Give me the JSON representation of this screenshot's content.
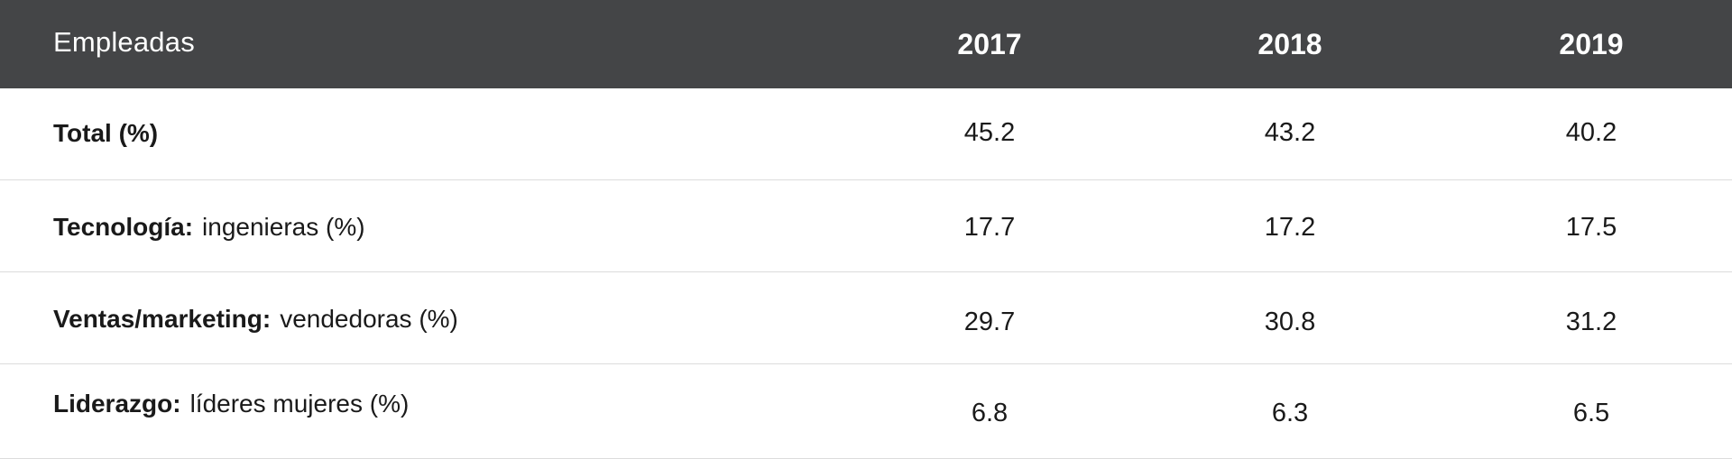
{
  "header": {
    "title": "Empleadas",
    "years": [
      "2017",
      "2018",
      "2019"
    ]
  },
  "rows": [
    {
      "strong": "Total (%)",
      "light": "",
      "values": [
        "45.2",
        "43.2",
        "40.2"
      ]
    },
    {
      "strong": "Tecnología:",
      "light": "ingenieras (%)",
      "values": [
        "17.7",
        "17.2",
        "17.5"
      ]
    },
    {
      "strong": "Ventas/marketing:",
      "light": "vendedoras (%)",
      "values": [
        "29.7",
        "30.8",
        "31.2"
      ]
    },
    {
      "strong": "Liderazgo:",
      "light": "líderes mujeres (%)",
      "values": [
        "6.8",
        "6.3",
        "6.5"
      ]
    }
  ],
  "colors": {
    "header_bg": "#444547",
    "header_text": "#ffffff",
    "row_divider": "#dcdcdc"
  }
}
